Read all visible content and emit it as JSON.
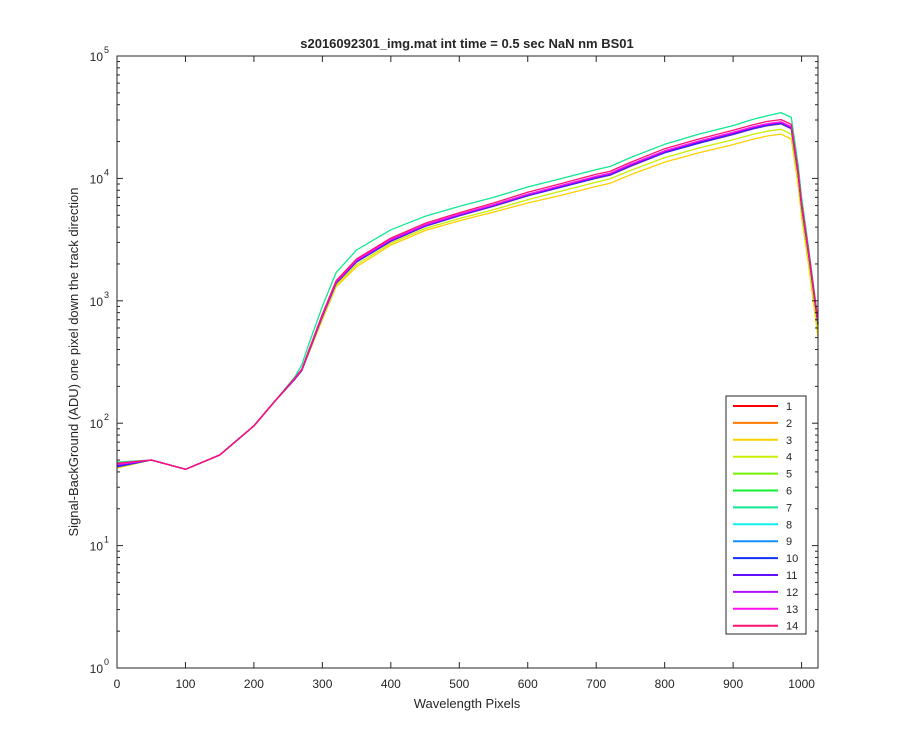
{
  "chart_data": {
    "type": "line",
    "title": "s2016092301_img.mat int time = 0.5 sec  NaN nm BS01",
    "xlabel": "Wavelength Pixels",
    "ylabel": "Signal-BackGround (ADU) one pixel down the track direction",
    "xlim": [
      0,
      1024
    ],
    "ylim": [
      1,
      100000
    ],
    "yscale": "log",
    "grid": false,
    "legend_position": "bottom-right",
    "x_ticks": [
      0,
      100,
      200,
      300,
      400,
      500,
      600,
      700,
      800,
      900,
      1000
    ],
    "x_tick_labels": [
      "0",
      "100",
      "200",
      "300",
      "400",
      "500",
      "600",
      "700",
      "800",
      "900",
      "1000"
    ],
    "y_ticks": [
      1,
      10,
      100,
      1000,
      10000,
      100000
    ],
    "y_tick_labels": [
      {
        "base": "10",
        "exp": "0"
      },
      {
        "base": "10",
        "exp": "1"
      },
      {
        "base": "10",
        "exp": "2"
      },
      {
        "base": "10",
        "exp": "3"
      },
      {
        "base": "10",
        "exp": "4"
      },
      {
        "base": "10",
        "exp": "5"
      }
    ],
    "x": [
      0,
      50,
      100,
      150,
      200,
      230,
      260,
      270,
      280,
      300,
      320,
      350,
      400,
      450,
      500,
      550,
      600,
      650,
      700,
      720,
      750,
      800,
      850,
      900,
      930,
      950,
      970,
      985,
      995,
      1000,
      1010,
      1024
    ],
    "series": [
      {
        "name": "1",
        "color": "#ff0000",
        "values": [
          45,
          50,
          42,
          55,
          95,
          150,
          230,
          270,
          380,
          750,
          1400,
          2100,
          3100,
          4100,
          5000,
          6000,
          7300,
          8600,
          10200,
          10800,
          12800,
          16500,
          19800,
          23300,
          26000,
          27500,
          28500,
          26000,
          11000,
          6000,
          2500,
          650
        ]
      },
      {
        "name": "2",
        "color": "#ff7a00",
        "values": [
          44,
          50,
          42,
          55,
          95,
          150,
          230,
          270,
          380,
          740,
          1380,
          2080,
          3050,
          4050,
          4950,
          5900,
          7200,
          8500,
          10000,
          10600,
          12500,
          16200,
          19400,
          22800,
          25400,
          26900,
          27800,
          25400,
          10700,
          5800,
          2400,
          630
        ]
      },
      {
        "name": "3",
        "color": "#ffd000",
        "values": [
          43,
          50,
          42,
          55,
          95,
          150,
          230,
          270,
          370,
          700,
          1300,
          1900,
          2850,
          3750,
          4500,
          5300,
          6300,
          7300,
          8600,
          9100,
          10700,
          13600,
          16200,
          18900,
          21000,
          22200,
          23000,
          21000,
          8800,
          4800,
          2000,
          500
        ]
      },
      {
        "name": "4",
        "color": "#c8f000",
        "values": [
          44,
          50,
          42,
          55,
          95,
          150,
          230,
          270,
          375,
          720,
          1340,
          1980,
          2950,
          3900,
          4700,
          5550,
          6700,
          7900,
          9300,
          9900,
          11600,
          14800,
          17700,
          20700,
          23000,
          24300,
          25200,
          23000,
          9600,
          5200,
          2200,
          560
        ]
      },
      {
        "name": "5",
        "color": "#70f000",
        "values": [
          45,
          50,
          42,
          55,
          95,
          150,
          230,
          270,
          380,
          745,
          1390,
          2090,
          3080,
          4080,
          4980,
          5950,
          7250,
          8550,
          10100,
          10700,
          12650,
          16300,
          19600,
          23000,
          25600,
          27100,
          28100,
          25700,
          10800,
          5900,
          2450,
          640
        ]
      },
      {
        "name": "6",
        "color": "#10f030",
        "values": [
          46,
          50,
          42,
          55,
          95,
          150,
          230,
          270,
          385,
          760,
          1420,
          2140,
          3150,
          4160,
          5080,
          6080,
          7400,
          8750,
          10350,
          10950,
          12950,
          16700,
          20100,
          23600,
          26300,
          27800,
          28800,
          26300,
          11100,
          6050,
          2520,
          660
        ]
      },
      {
        "name": "7",
        "color": "#10e890",
        "values": [
          48,
          50,
          42,
          55,
          95,
          150,
          240,
          300,
          440,
          900,
          1700,
          2600,
          3800,
          4900,
          5900,
          7000,
          8500,
          10000,
          11800,
          12500,
          14800,
          19000,
          23000,
          27000,
          30500,
          32500,
          34500,
          31500,
          13000,
          7000,
          2800,
          700
        ]
      },
      {
        "name": "8",
        "color": "#10f0f0",
        "values": [
          46,
          50,
          42,
          55,
          95,
          150,
          232,
          275,
          390,
          765,
          1430,
          2150,
          3170,
          4180,
          5100,
          6100,
          7420,
          8780,
          10380,
          10980,
          13000,
          16750,
          20150,
          23700,
          26400,
          27900,
          28900,
          26400,
          11150,
          6080,
          2530,
          665
        ]
      },
      {
        "name": "9",
        "color": "#1090ff",
        "values": [
          45,
          50,
          42,
          55,
          95,
          150,
          230,
          270,
          380,
          750,
          1400,
          2100,
          3100,
          4100,
          5000,
          6000,
          7300,
          8600,
          10200,
          10800,
          12800,
          16500,
          19800,
          23300,
          26000,
          27500,
          28500,
          26000,
          11000,
          6000,
          2500,
          650
        ]
      },
      {
        "name": "10",
        "color": "#1030ff",
        "values": [
          44,
          50,
          42,
          55,
          95,
          150,
          230,
          270,
          380,
          745,
          1390,
          2080,
          3060,
          4060,
          4960,
          5940,
          7220,
          8500,
          10050,
          10650,
          12600,
          16200,
          19400,
          22900,
          25500,
          27000,
          28000,
          25500,
          10800,
          5900,
          2450,
          640
        ]
      },
      {
        "name": "11",
        "color": "#6010ff",
        "values": [
          45,
          50,
          42,
          55,
          95,
          150,
          230,
          270,
          380,
          748,
          1395,
          2095,
          3090,
          4090,
          4990,
          5980,
          7280,
          8580,
          10150,
          10750,
          12700,
          16400,
          19700,
          23150,
          25800,
          27300,
          28300,
          25800,
          10900,
          5950,
          2480,
          645
        ]
      },
      {
        "name": "12",
        "color": "#b010ff",
        "values": [
          46,
          50,
          42,
          55,
          95,
          150,
          232,
          272,
          385,
          760,
          1420,
          2140,
          3150,
          4160,
          5080,
          6080,
          7400,
          8750,
          10350,
          10950,
          12950,
          16700,
          20100,
          23600,
          26300,
          27800,
          28800,
          26300,
          11100,
          6050,
          2520,
          660
        ]
      },
      {
        "name": "13",
        "color": "#ff10f0",
        "values": [
          46,
          50,
          42,
          55,
          95,
          150,
          233,
          274,
          388,
          765,
          1430,
          2150,
          3170,
          4180,
          5100,
          6100,
          7420,
          8780,
          10400,
          11000,
          13050,
          16800,
          20200,
          23800,
          26500,
          28000,
          29000,
          26500,
          11200,
          6100,
          2540,
          665
        ]
      },
      {
        "name": "14",
        "color": "#ff1070",
        "values": [
          47,
          50,
          42,
          55,
          95,
          150,
          235,
          276,
          392,
          780,
          1460,
          2200,
          3250,
          4300,
          5250,
          6300,
          7700,
          9100,
          10800,
          11400,
          13500,
          17500,
          21000,
          24700,
          27500,
          29200,
          30200,
          27600,
          11600,
          6300,
          2620,
          680
        ]
      }
    ]
  }
}
